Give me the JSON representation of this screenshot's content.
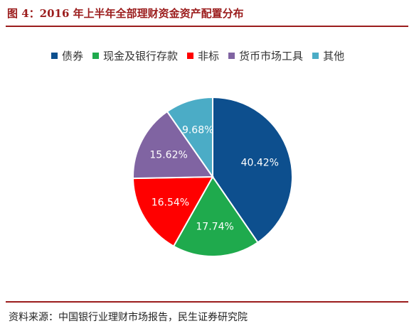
{
  "title": "图 4：2016 年上半年全部理财资金资产配置分布",
  "footer": "资料来源：中国银行业理财市场报告，民生证券研究院",
  "colors": {
    "accent": "#9b1c1c",
    "bonds": "#0d4f8e",
    "cash": "#1faa4d",
    "nonstandard": "#ff0000",
    "money_market": "#8064a2",
    "other": "#4bacc6"
  },
  "chart_data": {
    "type": "pie",
    "title": "",
    "legend_position": "top",
    "categories": [
      "债券",
      "现金及银行存款",
      "非标",
      "货币市场工具",
      "其他"
    ],
    "values": [
      40.42,
      17.74,
      16.54,
      15.62,
      9.68
    ],
    "labels": [
      "40.42%",
      "17.74%",
      "16.54%",
      "15.62%",
      "9.68%"
    ],
    "colors": [
      "#0d4f8e",
      "#1faa4d",
      "#ff0000",
      "#8064a2",
      "#4bacc6"
    ]
  }
}
